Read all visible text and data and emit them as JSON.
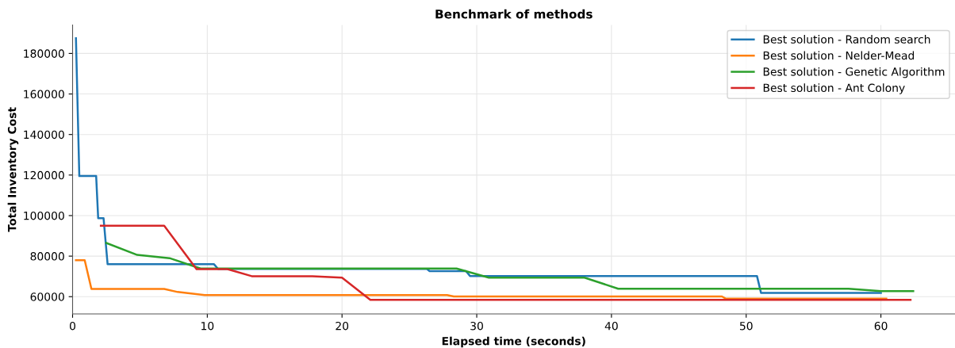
{
  "chart_data": {
    "type": "line",
    "title": "Benchmark of methods",
    "xlabel": "Elapsed time (seconds)",
    "ylabel": "Total Inventory Cost",
    "xlim": [
      0,
      65.5
    ],
    "xticks": [
      0,
      10,
      20,
      30,
      40,
      50,
      60
    ],
    "ylim": [
      51500,
      194000
    ],
    "yticks": [
      60000,
      80000,
      100000,
      120000,
      140000,
      160000,
      180000
    ],
    "grid": true,
    "legend": "top right",
    "line_style": "solid",
    "marker": "none",
    "series": [
      {
        "name": "Best solution - Random search",
        "color": "#1f77b4",
        "x": [
          0.25,
          0.5,
          1.75,
          1.9,
          2.3,
          2.6,
          10.5,
          10.8,
          26.3,
          26.5,
          29.2,
          29.5,
          50.8,
          51.1,
          60
        ],
        "values": [
          187500,
          119500,
          119500,
          98700,
          98700,
          76000,
          76000,
          73700,
          73700,
          72600,
          72600,
          70200,
          70200,
          61900,
          61900
        ]
      },
      {
        "name": "Best solution - Nelder-Mead",
        "color": "#ff7f0e",
        "x": [
          0.25,
          0.9,
          1.4,
          6.8,
          7.8,
          9.8,
          27.8,
          28.3,
          48.2,
          48.5,
          60.4
        ],
        "values": [
          78000,
          78000,
          63800,
          63800,
          62300,
          60800,
          60800,
          60100,
          60100,
          59000,
          59000
        ]
      },
      {
        "name": "Best solution - Genetic Algorithm",
        "color": "#2ca02c",
        "x": [
          2.5,
          4.8,
          7.2,
          9.5,
          28.5,
          30.9,
          38.0,
          40.5,
          57.6,
          60,
          62.4
        ],
        "values": [
          86500,
          80600,
          79000,
          73900,
          73900,
          69400,
          69400,
          63900,
          63900,
          62700,
          62700
        ]
      },
      {
        "name": "Best solution - Ant Colony",
        "color": "#d62728",
        "x": [
          2.1,
          6.8,
          9.2,
          11.5,
          13.3,
          17.8,
          20,
          22.1,
          62.2
        ],
        "values": [
          95000,
          95000,
          73600,
          73600,
          70100,
          70100,
          69400,
          58400,
          58400
        ]
      }
    ]
  }
}
